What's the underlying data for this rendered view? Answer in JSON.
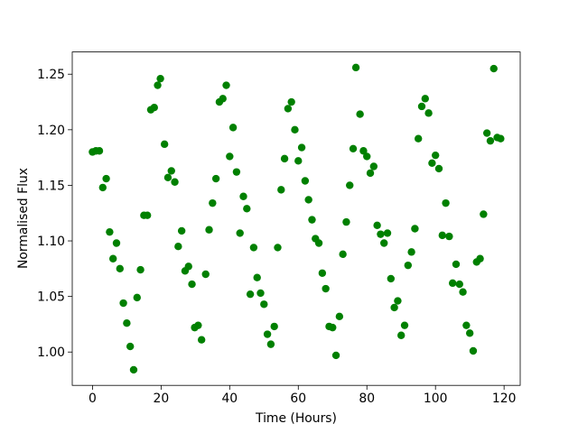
{
  "chart_data": {
    "type": "scatter",
    "x_label": "Time (Hours)",
    "y_label": "Normalised Flux",
    "color": "#008000",
    "x": [
      0,
      1,
      2,
      3,
      4,
      5,
      6,
      7,
      8,
      9,
      10,
      11,
      12,
      13,
      14,
      15,
      16,
      17,
      18,
      19,
      19.8,
      21,
      22,
      23,
      24,
      25,
      26,
      27,
      28,
      29,
      29.8,
      30.8,
      31.8,
      33,
      34,
      35,
      36,
      37,
      38,
      39,
      40,
      41,
      42,
      43,
      44,
      45,
      46,
      47,
      48,
      49,
      50,
      51,
      52,
      53,
      54,
      55,
      56,
      57,
      58,
      59,
      60,
      61,
      62,
      63,
      64,
      65,
      66,
      67,
      68,
      69,
      70,
      71,
      72,
      73,
      74,
      75,
      76,
      76.8,
      78,
      79,
      80,
      81,
      82,
      83,
      84,
      85,
      86,
      87,
      88,
      89,
      90,
      91,
      92,
      93,
      94,
      95,
      96,
      97,
      98,
      99,
      100,
      101,
      102,
      103,
      104,
      105,
      106,
      107,
      108,
      109,
      110,
      111,
      112,
      113,
      114,
      115,
      116,
      117,
      118,
      119
    ],
    "y": [
      1.18,
      1.181,
      1.181,
      1.148,
      1.156,
      1.108,
      1.084,
      1.098,
      1.075,
      1.044,
      1.026,
      1.005,
      0.984,
      1.049,
      1.074,
      1.123,
      1.123,
      1.218,
      1.22,
      1.24,
      1.246,
      1.187,
      1.157,
      1.163,
      1.153,
      1.095,
      1.109,
      1.073,
      1.077,
      1.061,
      1.022,
      1.024,
      1.011,
      1.07,
      1.11,
      1.134,
      1.156,
      1.225,
      1.228,
      1.24,
      1.176,
      1.202,
      1.162,
      1.107,
      1.14,
      1.129,
      1.052,
      1.094,
      1.067,
      1.053,
      1.043,
      1.016,
      1.007,
      1.023,
      1.094,
      1.146,
      1.174,
      1.219,
      1.225,
      1.2,
      1.172,
      1.184,
      1.154,
      1.137,
      1.119,
      1.102,
      1.098,
      1.071,
      1.057,
      1.023,
      1.022,
      0.997,
      1.032,
      1.088,
      1.117,
      1.15,
      1.183,
      1.256,
      1.214,
      1.181,
      1.176,
      1.161,
      1.167,
      1.114,
      1.106,
      1.098,
      1.107,
      1.066,
      1.04,
      1.046,
      1.015,
      1.024,
      1.078,
      1.09,
      1.111,
      1.192,
      1.221,
      1.228,
      1.215,
      1.17,
      1.177,
      1.165,
      1.105,
      1.134,
      1.104,
      1.062,
      1.079,
      1.061,
      1.054,
      1.024,
      1.017,
      1.001,
      1.081,
      1.084,
      1.124,
      1.197,
      1.19,
      1.255,
      1.193,
      1.192
    ],
    "xlim": [
      -5.9,
      124.7
    ],
    "ylim": [
      0.97,
      1.27
    ],
    "xticks": [
      0,
      20,
      40,
      60,
      80,
      100,
      120
    ],
    "yticks": [
      {
        "value": 1.0,
        "label": "1.00"
      },
      {
        "value": 1.05,
        "label": "1.05"
      },
      {
        "value": 1.1,
        "label": "1.10"
      },
      {
        "value": 1.15,
        "label": "1.15"
      },
      {
        "value": 1.2,
        "label": "1.20"
      },
      {
        "value": 1.25,
        "label": "1.25"
      }
    ]
  }
}
